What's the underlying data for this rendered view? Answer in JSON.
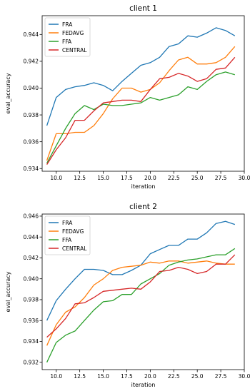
{
  "chart_data": [
    {
      "type": "line",
      "title": "client 1",
      "xlabel": "iteration",
      "ylabel": "eval_accuracy",
      "xlim": [
        8.5,
        30.0
      ],
      "ylim": [
        0.9338,
        0.9454
      ],
      "xticks": [
        "10.0",
        "12.5",
        "15.0",
        "17.5",
        "20.0",
        "22.5",
        "25.0",
        "27.5",
        "30.0"
      ],
      "xtick_values": [
        10,
        12.5,
        15,
        17.5,
        20,
        22.5,
        25,
        27.5,
        30
      ],
      "yticks": [
        "0.934",
        "0.936",
        "0.938",
        "0.940",
        "0.942",
        "0.944"
      ],
      "ytick_values": [
        0.934,
        0.936,
        0.938,
        0.94,
        0.942,
        0.944
      ],
      "grid": false,
      "legend": "top-left",
      "x": [
        9,
        10,
        11,
        12,
        13,
        14,
        15,
        16,
        17,
        18,
        19,
        20,
        21,
        22,
        23,
        24,
        25,
        26,
        27,
        28,
        29
      ],
      "series": [
        {
          "name": "FRA",
          "color": "#1f77b4",
          "values": [
            0.9372,
            0.9393,
            0.9399,
            0.9401,
            0.9402,
            0.9404,
            0.9402,
            0.9398,
            0.9405,
            0.9411,
            0.9417,
            0.9419,
            0.9423,
            0.9431,
            0.9433,
            0.9439,
            0.9438,
            0.9441,
            0.9445,
            0.9443,
            0.9439
          ]
        },
        {
          "name": "FEDAVG",
          "color": "#ff7f0e",
          "values": [
            0.9346,
            0.9366,
            0.9366,
            0.9367,
            0.9367,
            0.9372,
            0.9381,
            0.9392,
            0.94,
            0.94,
            0.9397,
            0.9399,
            0.9404,
            0.9413,
            0.9421,
            0.9423,
            0.9418,
            0.9418,
            0.9419,
            0.9423,
            0.9431
          ]
        },
        {
          "name": "FFA",
          "color": "#2ca02c",
          "values": [
            0.9344,
            0.9357,
            0.937,
            0.9381,
            0.9387,
            0.9384,
            0.9388,
            0.9387,
            0.9387,
            0.9388,
            0.9389,
            0.9393,
            0.9391,
            0.9393,
            0.9395,
            0.9401,
            0.9399,
            0.9405,
            0.941,
            0.9412,
            0.941
          ]
        },
        {
          "name": "CENTRAL",
          "color": "#d62728",
          "values": [
            0.9343,
            0.9354,
            0.9363,
            0.9376,
            0.9376,
            0.9383,
            0.9389,
            0.939,
            0.9391,
            0.9391,
            0.939,
            0.9399,
            0.9407,
            0.9408,
            0.9411,
            0.9409,
            0.9405,
            0.9407,
            0.9414,
            0.9415,
            0.9423
          ]
        }
      ]
    },
    {
      "type": "line",
      "title": "client 2",
      "xlabel": "iteration",
      "ylabel": "eval_accuracy",
      "xlim": [
        8.5,
        30.0
      ],
      "ylim": [
        0.9313,
        0.9462
      ],
      "xticks": [
        "10.0",
        "12.5",
        "15.0",
        "17.5",
        "20.0",
        "22.5",
        "25.0",
        "27.5",
        "30.0"
      ],
      "xtick_values": [
        10,
        12.5,
        15,
        17.5,
        20,
        22.5,
        25,
        27.5,
        30
      ],
      "yticks": [
        "0.932",
        "0.934",
        "0.936",
        "0.938",
        "0.940",
        "0.942",
        "0.944",
        "0.946"
      ],
      "ytick_values": [
        0.932,
        0.934,
        0.936,
        0.938,
        0.94,
        0.942,
        0.944,
        0.946
      ],
      "grid": false,
      "legend": "top-left",
      "x": [
        9,
        10,
        11,
        12,
        13,
        14,
        15,
        16,
        17,
        18,
        19,
        20,
        21,
        22,
        23,
        24,
        25,
        26,
        27,
        28,
        29
      ],
      "series": [
        {
          "name": "FRA",
          "color": "#1f77b4",
          "values": [
            0.936,
            0.9379,
            0.939,
            0.94,
            0.9409,
            0.9409,
            0.9408,
            0.9404,
            0.9404,
            0.9408,
            0.9413,
            0.9424,
            0.9428,
            0.9432,
            0.9432,
            0.9438,
            0.9438,
            0.9444,
            0.9453,
            0.9455,
            0.9452
          ]
        },
        {
          "name": "FEDAVG",
          "color": "#ff7f0e",
          "values": [
            0.9336,
            0.9356,
            0.9368,
            0.9373,
            0.9382,
            0.9394,
            0.94,
            0.9408,
            0.9411,
            0.9412,
            0.9413,
            0.9416,
            0.9415,
            0.9417,
            0.9417,
            0.9415,
            0.9416,
            0.9417,
            0.9415,
            0.9414,
            0.9414
          ]
        },
        {
          "name": "FFA",
          "color": "#2ca02c",
          "values": [
            0.932,
            0.9339,
            0.9346,
            0.935,
            0.936,
            0.937,
            0.9378,
            0.9379,
            0.9385,
            0.9385,
            0.9395,
            0.94,
            0.9405,
            0.9413,
            0.9416,
            0.9418,
            0.9419,
            0.9421,
            0.9423,
            0.9423,
            0.9429
          ]
        },
        {
          "name": "CENTRAL",
          "color": "#d62728",
          "values": [
            0.9344,
            0.9352,
            0.9362,
            0.9376,
            0.9377,
            0.9382,
            0.9388,
            0.9389,
            0.939,
            0.9391,
            0.939,
            0.9397,
            0.9407,
            0.9408,
            0.9411,
            0.9409,
            0.9405,
            0.9407,
            0.9414,
            0.9414,
            0.9423
          ]
        }
      ]
    }
  ]
}
